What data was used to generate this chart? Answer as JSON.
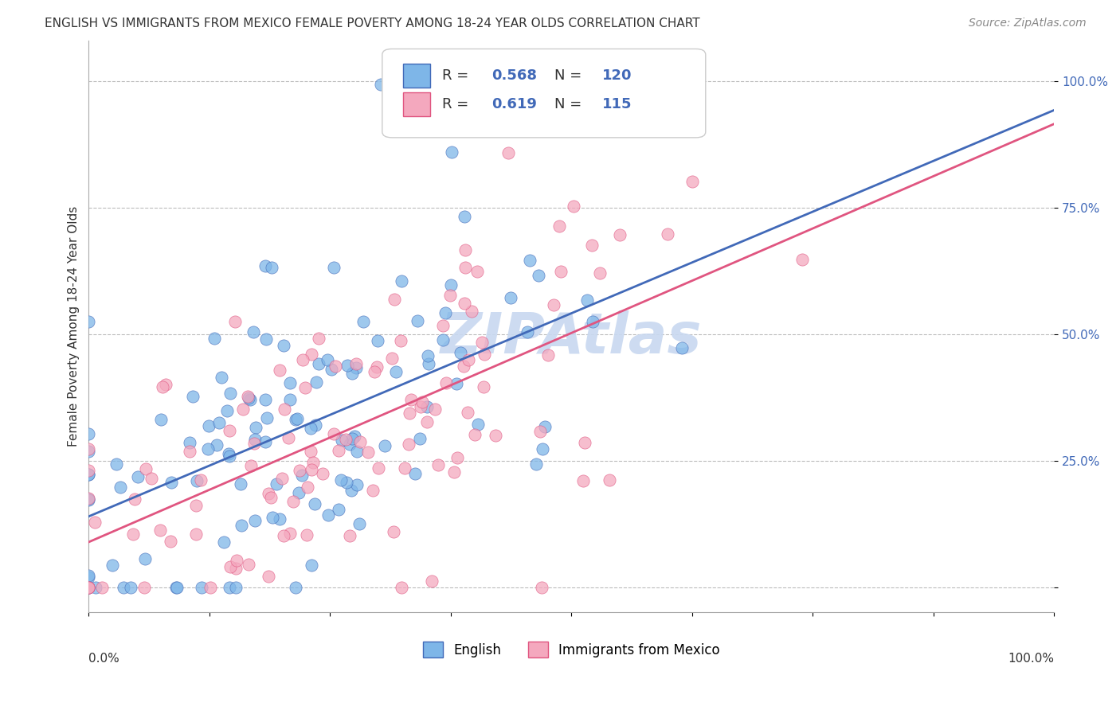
{
  "title": "ENGLISH VS IMMIGRANTS FROM MEXICO FEMALE POVERTY AMONG 18-24 YEAR OLDS CORRELATION CHART",
  "source": "Source: ZipAtlas.com",
  "ylabel": "Female Poverty Among 18-24 Year Olds",
  "legend_english_R": "0.568",
  "legend_english_N": "120",
  "legend_mexico_R": "0.619",
  "legend_mexico_N": "115",
  "english_color": "#7EB6E8",
  "mexico_color": "#F4A8BE",
  "english_line_color": "#4169B8",
  "mexico_line_color": "#E05580",
  "watermark_text": "ZIPAtlas",
  "watermark_color": "#C8D8F0",
  "background_color": "#FFFFFF",
  "title_fontsize": 11,
  "source_fontsize": 10,
  "seed_english": 42,
  "seed_mexico": 99,
  "N_english": 120,
  "N_mexico": 115,
  "R_english": 0.568,
  "R_mexico": 0.619
}
